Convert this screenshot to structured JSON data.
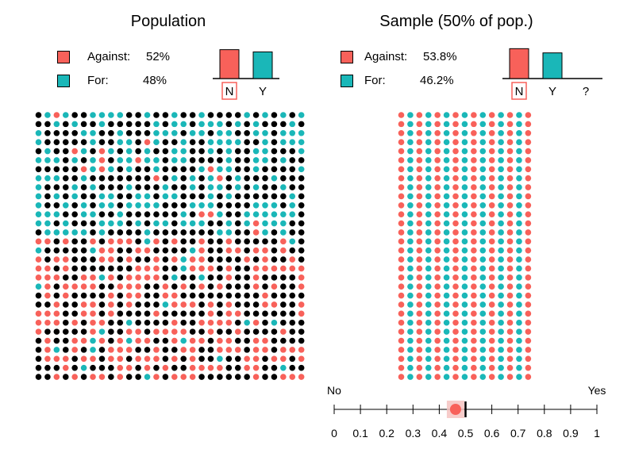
{
  "colors": {
    "against": "#f8615a",
    "for": "#1ab7b8",
    "unsampled": "#000000"
  },
  "population": {
    "title": "Population",
    "legend": [
      {
        "label": "Against:",
        "value": "52%",
        "color": "#f8615a"
      },
      {
        "label": "For:",
        "value": "48%",
        "color": "#1ab7b8"
      }
    ]
  },
  "sample": {
    "title": "Sample (50% of pop.)",
    "legend": [
      {
        "label": "Against:",
        "value": "53.8%",
        "color": "#f8615a"
      },
      {
        "label": "For:",
        "value": "46.2%",
        "color": "#1ab7b8"
      }
    ]
  },
  "chart_data": [
    {
      "type": "bar",
      "categories": [
        "N",
        "Y"
      ],
      "values": [
        52,
        48
      ],
      "ylim": [
        0,
        55
      ],
      "highlighted_category": "N"
    },
    {
      "type": "bar",
      "categories": [
        "N",
        "Y",
        "?"
      ],
      "values": [
        53.8,
        46.2,
        0
      ],
      "ylim": [
        0,
        55
      ],
      "highlighted_category": "N"
    },
    {
      "type": "scatter",
      "grid_rows": 30,
      "grid_cols": 30,
      "upper_rows": 14,
      "upper_minority": "for",
      "lower_minority": "against",
      "sampled_fraction": 0.5
    },
    {
      "type": "scatter",
      "grid_rows": 30,
      "grid_cols": 15,
      "against_fraction": 0.538,
      "for_fraction": 0.462
    },
    {
      "type": "line",
      "axis_left_label": "No",
      "axis_right_label": "Yes",
      "xlim": [
        0,
        1
      ],
      "ticks": [
        "0",
        "0.1",
        "0.2",
        "0.3",
        "0.4",
        "0.5",
        "0.6",
        "0.7",
        "0.8",
        "0.9",
        "1"
      ],
      "marker_value": 0.462,
      "reference_value": 0.5
    }
  ]
}
